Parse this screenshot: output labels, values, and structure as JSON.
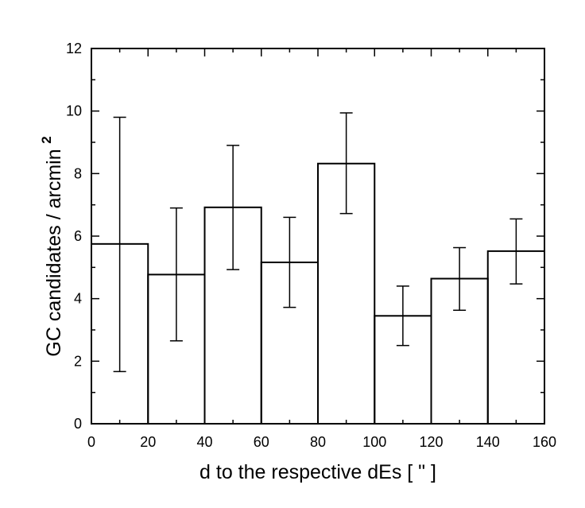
{
  "chart_data": {
    "type": "bar",
    "style": "histogram-step-with-error-bars",
    "xlabel": "d to the respective dEs [ \" ]",
    "ylabel": "GC candidates / arcmin",
    "ylabel_superscript": "2",
    "xlim": [
      0,
      160
    ],
    "ylim": [
      0,
      12
    ],
    "x_ticks": [
      "0",
      "20",
      "40",
      "60",
      "80",
      "100",
      "120",
      "140",
      "160"
    ],
    "y_ticks": [
      "0",
      "2",
      "4",
      "6",
      "8",
      "10",
      "12"
    ],
    "grid": false,
    "bins": [
      {
        "x0": 0,
        "x1": 20,
        "value": 5.75,
        "err_low": 1.67,
        "err_high": 9.8
      },
      {
        "x0": 20,
        "x1": 40,
        "value": 4.77,
        "err_low": 2.65,
        "err_high": 6.9
      },
      {
        "x0": 40,
        "x1": 60,
        "value": 6.92,
        "err_low": 4.93,
        "err_high": 8.9
      },
      {
        "x0": 60,
        "x1": 80,
        "value": 5.16,
        "err_low": 3.72,
        "err_high": 6.6
      },
      {
        "x0": 80,
        "x1": 100,
        "value": 8.32,
        "err_low": 6.72,
        "err_high": 9.94
      },
      {
        "x0": 100,
        "x1": 120,
        "value": 3.45,
        "err_low": 2.5,
        "err_high": 4.4
      },
      {
        "x0": 120,
        "x1": 140,
        "value": 4.64,
        "err_low": 3.63,
        "err_high": 5.63
      },
      {
        "x0": 140,
        "x1": 160,
        "value": 5.52,
        "err_low": 4.47,
        "err_high": 6.55
      }
    ],
    "colors": {
      "line": "#000000",
      "background": "#ffffff"
    }
  }
}
